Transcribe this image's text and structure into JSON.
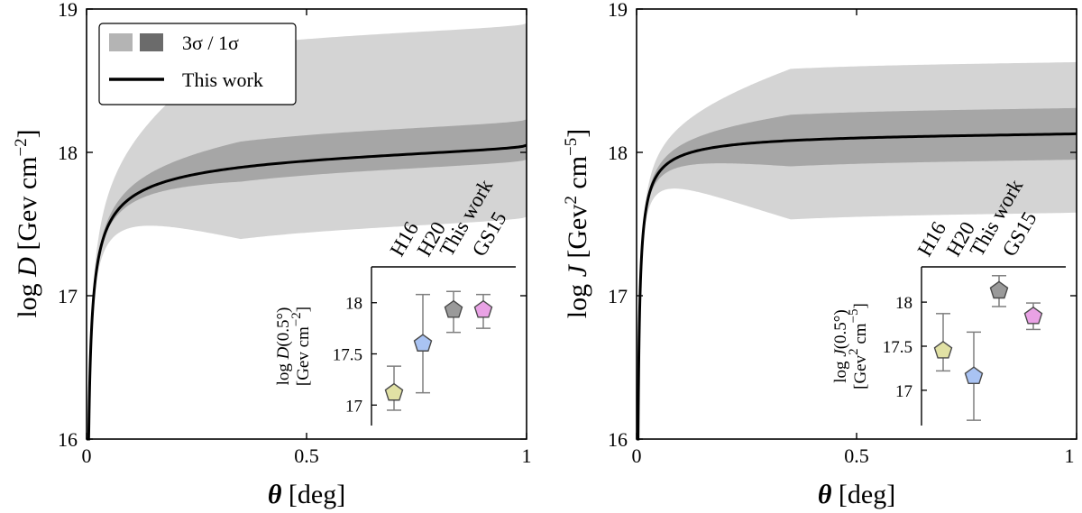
{
  "chart_data": [
    {
      "type": "line",
      "panel": "left",
      "xlabel": "θ [deg]",
      "ylabel": "log D [Gev cm⁻²]",
      "ylabel_parts": {
        "log": "log ",
        "var": "D",
        "unit": " [Gev cm",
        "exp": "−2",
        "close": "]"
      },
      "xlim": [
        0,
        1
      ],
      "ylim": [
        16,
        19
      ],
      "xticks": [
        0,
        0.5,
        1
      ],
      "xtick_labels": [
        "0",
        "0.5",
        "1"
      ],
      "yticks": [
        16,
        17,
        18,
        19
      ],
      "ytick_labels": [
        "16",
        "17",
        "18",
        "19"
      ],
      "legend": {
        "position": "top-left",
        "entries": [
          {
            "label": "3σ / 1σ",
            "kind": "bands"
          },
          {
            "label": "This work",
            "kind": "line"
          }
        ]
      },
      "curve": {
        "kind": "D",
        "final": 18.05,
        "scale": 0.11,
        "power": 0.55
      },
      "bands": {
        "s1": [
          0.1,
          0.18
        ],
        "s3": [
          0.5,
          0.85
        ]
      },
      "colors": {
        "band3": "#d4d4d4",
        "band1": "#a6a6a6",
        "line": "#000000"
      },
      "inset": {
        "ylabel_line1": "log D(0.5°)",
        "ylabel_line1_parts": {
          "log": "log ",
          "var": "D",
          "rest": "(0.5°)"
        },
        "ylabel_line2": "[Gev cm⁻²]",
        "ylabel_line2_parts": {
          "unit": "[Gev cm",
          "exp": "−2",
          "close": "]"
        },
        "ylim": [
          16.8,
          18.35
        ],
        "yticks": [
          17,
          17.5,
          18
        ],
        "ytick_labels": [
          "17",
          "17.5",
          "18"
        ],
        "categories": [
          "H16",
          "H20",
          "This work",
          "GS15"
        ],
        "points": [
          {
            "label": "H16",
            "value": 17.12,
            "err_low": 0.17,
            "err_high": 0.26,
            "color": "#e1e1a4"
          },
          {
            "label": "H20",
            "value": 17.6,
            "err_low": 0.48,
            "err_high": 0.48,
            "color": "#a9c3f3"
          },
          {
            "label": "This work",
            "value": 17.93,
            "err_low": 0.22,
            "err_high": 0.18,
            "color": "#9a9a9a"
          },
          {
            "label": "GS15",
            "value": 17.93,
            "err_low": 0.18,
            "err_high": 0.15,
            "color": "#e9a2e5"
          }
        ]
      }
    },
    {
      "type": "line",
      "panel": "right",
      "xlabel": "θ [deg]",
      "ylabel": "log J [Gev² cm⁻⁵]",
      "ylabel_parts": {
        "log": "log ",
        "var": "J",
        "unit": " [Gev",
        "exp": "2",
        "mid": " cm",
        "exp2": "−5",
        "close": "]"
      },
      "xlim": [
        0,
        1
      ],
      "ylim": [
        16,
        19
      ],
      "xticks": [
        0,
        0.5,
        1
      ],
      "xtick_labels": [
        "0",
        "0.5",
        "1"
      ],
      "yticks": [
        16,
        17,
        18,
        19
      ],
      "ytick_labels": [
        "16",
        "17",
        "18",
        "19"
      ],
      "curve": {
        "kind": "J",
        "final": 18.13,
        "scale": 0.03,
        "power": 0.75
      },
      "bands": {
        "s1": [
          0.18,
          0.18
        ],
        "s3": [
          0.55,
          0.5
        ]
      },
      "colors": {
        "band3": "#d4d4d4",
        "band1": "#a6a6a6",
        "line": "#000000"
      },
      "inset": {
        "ylabel_line1": "log J(0.5°)",
        "ylabel_line1_parts": {
          "log": "log ",
          "var": "J",
          "rest": "(0.5°)"
        },
        "ylabel_line2": "[Gev² cm⁻⁵]",
        "ylabel_line2_parts": {
          "unit": "[Gev",
          "exp": "2",
          "mid": " cm",
          "exp2": "−5",
          "close": "]"
        },
        "ylim": [
          16.6,
          18.4
        ],
        "yticks": [
          17,
          17.5,
          18
        ],
        "ytick_labels": [
          "17",
          "17.5",
          "18"
        ],
        "categories": [
          "H16",
          "H20",
          "This work",
          "GS15"
        ],
        "points": [
          {
            "label": "H16",
            "value": 17.45,
            "err_low": 0.23,
            "err_high": 0.42,
            "color": "#e1e1a4"
          },
          {
            "label": "H20",
            "value": 17.16,
            "err_low": 0.5,
            "err_high": 0.5,
            "color": "#a9c3f3"
          },
          {
            "label": "This work",
            "value": 18.13,
            "err_low": 0.18,
            "err_high": 0.17,
            "color": "#9a9a9a"
          },
          {
            "label": "GS15",
            "value": 17.84,
            "err_low": 0.15,
            "err_high": 0.15,
            "color": "#e9a2e5"
          }
        ]
      }
    }
  ]
}
